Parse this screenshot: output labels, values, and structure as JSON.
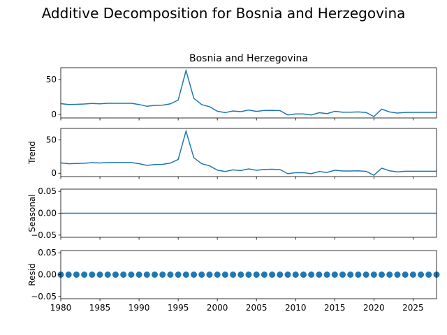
{
  "figure": {
    "suptitle": "Additive Decomposition for Bosnia and Herzegovina",
    "panel_title": "Bosnia and Herzegovina",
    "line_color": "#1f77b4"
  },
  "chart_data": {
    "type": "line",
    "title": "Bosnia and Herzegovina",
    "x": [
      1980,
      1981,
      1982,
      1983,
      1984,
      1985,
      1986,
      1987,
      1988,
      1989,
      1990,
      1991,
      1992,
      1993,
      1994,
      1995,
      1996,
      1997,
      1998,
      1999,
      2000,
      2001,
      2002,
      2003,
      2004,
      2005,
      2006,
      2007,
      2008,
      2009,
      2010,
      2011,
      2012,
      2013,
      2014,
      2015,
      2016,
      2017,
      2018,
      2019,
      2020,
      2021,
      2022,
      2023,
      2024,
      2025,
      2026,
      2027,
      2028
    ],
    "xlim": [
      1980,
      2028
    ],
    "xticks": [
      1980,
      1985,
      1990,
      1995,
      2000,
      2005,
      2010,
      2015,
      2020,
      2025
    ],
    "panels": [
      {
        "ylabel": "",
        "ylim": [
          -5,
          67
        ],
        "yticks": [
          0,
          50
        ],
        "ytick_labels": [
          "0",
          "50"
        ],
        "style": "line",
        "values": [
          15.5,
          14.2,
          14.5,
          15.0,
          15.8,
          15.3,
          16.0,
          16.0,
          16.0,
          16.0,
          14.3,
          11.7,
          13.0,
          13.3,
          15.2,
          20.6,
          63.0,
          23.1,
          14.2,
          11.1,
          4.6,
          2.6,
          5.0,
          4.0,
          6.4,
          4.4,
          5.7,
          5.9,
          5.5,
          -0.7,
          0.8,
          0.8,
          -0.7,
          2.5,
          1.2,
          4.5,
          3.3,
          3.3,
          3.6,
          2.9,
          -3.0,
          7.6,
          3.6,
          2.0,
          2.9,
          3.0,
          3.0,
          3.0,
          3.0
        ]
      },
      {
        "ylabel": "Trend",
        "ylim": [
          -5,
          67
        ],
        "yticks": [
          0,
          50
        ],
        "ytick_labels": [
          "0",
          "50"
        ],
        "style": "line",
        "values": [
          15.5,
          14.2,
          14.5,
          15.0,
          15.8,
          15.3,
          16.0,
          16.0,
          16.0,
          16.0,
          14.3,
          11.7,
          13.0,
          13.3,
          15.2,
          20.6,
          63.0,
          23.1,
          14.2,
          11.1,
          4.6,
          2.6,
          5.0,
          4.0,
          6.4,
          4.4,
          5.7,
          5.9,
          5.5,
          -0.7,
          0.8,
          0.8,
          -0.7,
          2.5,
          1.2,
          4.5,
          3.3,
          3.3,
          3.6,
          2.9,
          -3.0,
          7.6,
          3.6,
          2.0,
          2.9,
          3.0,
          3.0,
          3.0,
          3.0
        ]
      },
      {
        "ylabel": "Seasonal",
        "ylim": [
          -0.055,
          0.055
        ],
        "yticks": [
          -0.05,
          0.0,
          0.05
        ],
        "ytick_labels": [
          "−0.05",
          "0.00",
          "0.05"
        ],
        "style": "line",
        "values": [
          0,
          0,
          0,
          0,
          0,
          0,
          0,
          0,
          0,
          0,
          0,
          0,
          0,
          0,
          0,
          0,
          0,
          0,
          0,
          0,
          0,
          0,
          0,
          0,
          0,
          0,
          0,
          0,
          0,
          0,
          0,
          0,
          0,
          0,
          0,
          0,
          0,
          0,
          0,
          0,
          0,
          0,
          0,
          0,
          0,
          0,
          0,
          0,
          0
        ]
      },
      {
        "ylabel": "Resid",
        "ylim": [
          -0.055,
          0.055
        ],
        "yticks": [
          -0.05,
          0.0,
          0.05
        ],
        "ytick_labels": [
          "−0.05",
          "0.00",
          "0.05"
        ],
        "style": "markers",
        "values": [
          0,
          0,
          0,
          0,
          0,
          0,
          0,
          0,
          0,
          0,
          0,
          0,
          0,
          0,
          0,
          0,
          0,
          0,
          0,
          0,
          0,
          0,
          0,
          0,
          0,
          0,
          0,
          0,
          0,
          0,
          0,
          0,
          0,
          0,
          0,
          0,
          0,
          0,
          0,
          0,
          0,
          0,
          0,
          0,
          0,
          0,
          0,
          0,
          0
        ]
      }
    ]
  }
}
